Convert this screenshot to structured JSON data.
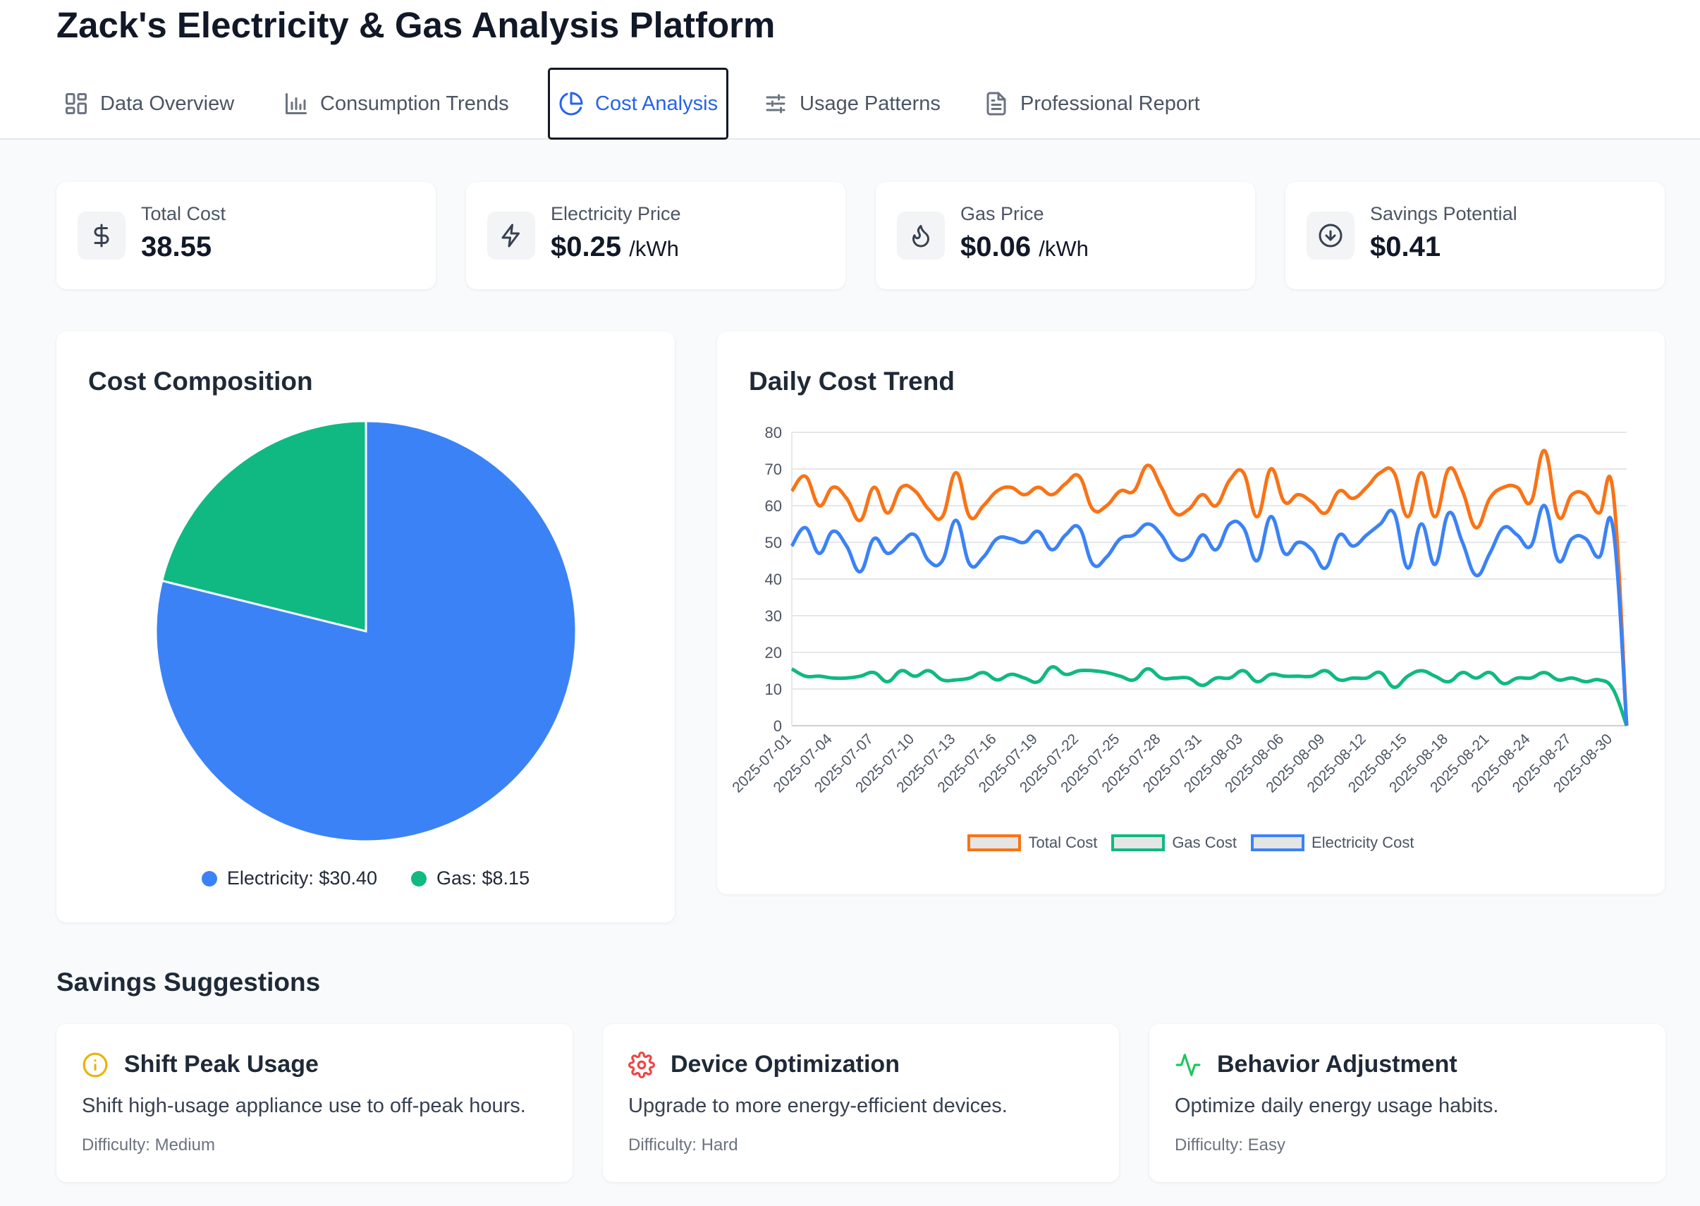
{
  "app": {
    "title": "Zack's Electricity & Gas Analysis Platform"
  },
  "tabs": [
    {
      "label": "Data Overview",
      "icon": "grid-icon",
      "active": false
    },
    {
      "label": "Consumption Trends",
      "icon": "bar-chart-icon",
      "active": false
    },
    {
      "label": "Cost Analysis",
      "icon": "pie-chart-icon",
      "active": true
    },
    {
      "label": "Usage Patterns",
      "icon": "sliders-icon",
      "active": false
    },
    {
      "label": "Professional Report",
      "icon": "document-icon",
      "active": false
    }
  ],
  "kpis": {
    "total_cost": {
      "label": "Total Cost",
      "value": "38.55",
      "icon": "dollar-icon"
    },
    "electricity_price": {
      "label": "Electricity Price",
      "value": "$0.25",
      "unit": "/kWh",
      "icon": "lightning-icon"
    },
    "gas_price": {
      "label": "Gas Price",
      "value": "$0.06",
      "unit": "/kWh",
      "icon": "flame-icon"
    },
    "savings_potential": {
      "label": "Savings Potential",
      "value": "$0.41",
      "icon": "arrow-down-circle-icon"
    }
  },
  "cost_composition": {
    "title": "Cost Composition",
    "legend": {
      "electricity": "Electricity: $30.40",
      "gas": "Gas: $8.15"
    }
  },
  "daily_trend": {
    "title": "Daily Cost Trend",
    "legend": {
      "total": "Total Cost",
      "gas": "Gas Cost",
      "electricity": "Electricity Cost"
    }
  },
  "savings": {
    "title": "Savings Suggestions",
    "items": [
      {
        "title": "Shift Peak Usage",
        "desc": "Shift high-usage appliance use to off-peak hours.",
        "difficulty": "Difficulty: Medium",
        "icon": "info-icon",
        "color": "#eab308"
      },
      {
        "title": "Device Optimization",
        "desc": "Upgrade to more energy-efficient devices.",
        "difficulty": "Difficulty: Hard",
        "icon": "gear-icon",
        "color": "#ef4444"
      },
      {
        "title": "Behavior Adjustment",
        "desc": "Optimize daily energy usage habits.",
        "difficulty": "Difficulty: Easy",
        "icon": "activity-icon",
        "color": "#22c55e"
      }
    ]
  },
  "colors": {
    "electricity": "#3b82f6",
    "gas": "#10b981",
    "total": "#f97316",
    "active_tab": "#2563eb"
  },
  "chart_data": [
    {
      "type": "pie",
      "title": "Cost Composition",
      "categories": [
        "Electricity",
        "Gas"
      ],
      "values": [
        30.4,
        8.15
      ],
      "colors": [
        "#3b82f6",
        "#10b981"
      ],
      "legend": "bottom"
    },
    {
      "type": "line",
      "title": "Daily Cost Trend",
      "xlabel": "",
      "ylabel": "",
      "ylim": [
        0,
        80
      ],
      "yticks": [
        0,
        10,
        20,
        30,
        40,
        50,
        60,
        70,
        80
      ],
      "grid": true,
      "legend": "bottom",
      "x": [
        "2025-07-01",
        "2025-07-02",
        "2025-07-03",
        "2025-07-04",
        "2025-07-05",
        "2025-07-06",
        "2025-07-07",
        "2025-07-08",
        "2025-07-09",
        "2025-07-10",
        "2025-07-11",
        "2025-07-12",
        "2025-07-13",
        "2025-07-14",
        "2025-07-15",
        "2025-07-16",
        "2025-07-17",
        "2025-07-18",
        "2025-07-19",
        "2025-07-20",
        "2025-07-21",
        "2025-07-22",
        "2025-07-23",
        "2025-07-24",
        "2025-07-25",
        "2025-07-26",
        "2025-07-27",
        "2025-07-28",
        "2025-07-29",
        "2025-07-30",
        "2025-07-31",
        "2025-08-01",
        "2025-08-02",
        "2025-08-03",
        "2025-08-04",
        "2025-08-05",
        "2025-08-06",
        "2025-08-07",
        "2025-08-08",
        "2025-08-09",
        "2025-08-10",
        "2025-08-11",
        "2025-08-12",
        "2025-08-13",
        "2025-08-14",
        "2025-08-15",
        "2025-08-16",
        "2025-08-17",
        "2025-08-18",
        "2025-08-19",
        "2025-08-20",
        "2025-08-21",
        "2025-08-22",
        "2025-08-23",
        "2025-08-24",
        "2025-08-25",
        "2025-08-26",
        "2025-08-27",
        "2025-08-28",
        "2025-08-29",
        "2025-08-30",
        "2025-08-31"
      ],
      "xticks": [
        "2025-07-01",
        "2025-07-04",
        "2025-07-07",
        "2025-07-10",
        "2025-07-13",
        "2025-07-16",
        "2025-07-19",
        "2025-07-22",
        "2025-07-25",
        "2025-07-28",
        "2025-07-31",
        "2025-08-03",
        "2025-08-06",
        "2025-08-09",
        "2025-08-12",
        "2025-08-15",
        "2025-08-18",
        "2025-08-21",
        "2025-08-24",
        "2025-08-27",
        "2025-08-30"
      ],
      "series": [
        {
          "name": "Total Cost",
          "color": "#f97316",
          "values": [
            64,
            68,
            60,
            65,
            62,
            56,
            65,
            58,
            65,
            64,
            59,
            57,
            69,
            57,
            60,
            64,
            65,
            63,
            65,
            63,
            66,
            68,
            59,
            60,
            64,
            64,
            71,
            65,
            58,
            59,
            63,
            60,
            67,
            69,
            57,
            70,
            61,
            63,
            61,
            58,
            64,
            62,
            65,
            69,
            69,
            57,
            69,
            57,
            70,
            64,
            54,
            62,
            65,
            65,
            61,
            75,
            57,
            63,
            63,
            58,
            64,
            0
          ]
        },
        {
          "name": "Gas Cost",
          "color": "#10b981",
          "values": [
            15.5,
            13.5,
            13.5,
            13,
            13,
            13.5,
            14.5,
            12,
            15,
            13.5,
            15,
            12.5,
            12.5,
            13,
            14.5,
            12.5,
            14,
            13,
            12,
            16,
            14,
            15,
            15,
            14.5,
            13.5,
            12.5,
            15.5,
            13,
            13,
            13,
            11,
            13,
            13,
            15,
            12,
            14,
            13.5,
            13.5,
            13.5,
            15,
            12.5,
            13,
            13,
            14.5,
            10.5,
            13.5,
            15,
            13.5,
            12,
            14.5,
            13,
            14.5,
            11.5,
            13,
            13,
            14.5,
            12.5,
            13,
            12,
            12.5,
            10,
            0
          ]
        },
        {
          "name": "Electricity Cost",
          "color": "#3b82f6",
          "values": [
            49,
            54,
            47,
            53,
            49,
            42,
            51,
            47,
            50,
            52,
            45,
            45,
            56,
            44,
            46,
            51,
            51,
            50,
            53,
            48,
            52,
            54,
            44,
            46,
            51,
            52,
            55,
            52,
            46,
            46,
            52,
            48,
            55,
            54,
            45,
            57,
            47,
            50,
            48,
            43,
            52,
            49,
            52,
            55,
            58,
            43,
            55,
            44,
            58,
            50,
            41,
            47,
            54,
            52,
            49,
            60,
            45,
            51,
            51,
            46,
            54,
            0
          ]
        }
      ]
    }
  ]
}
